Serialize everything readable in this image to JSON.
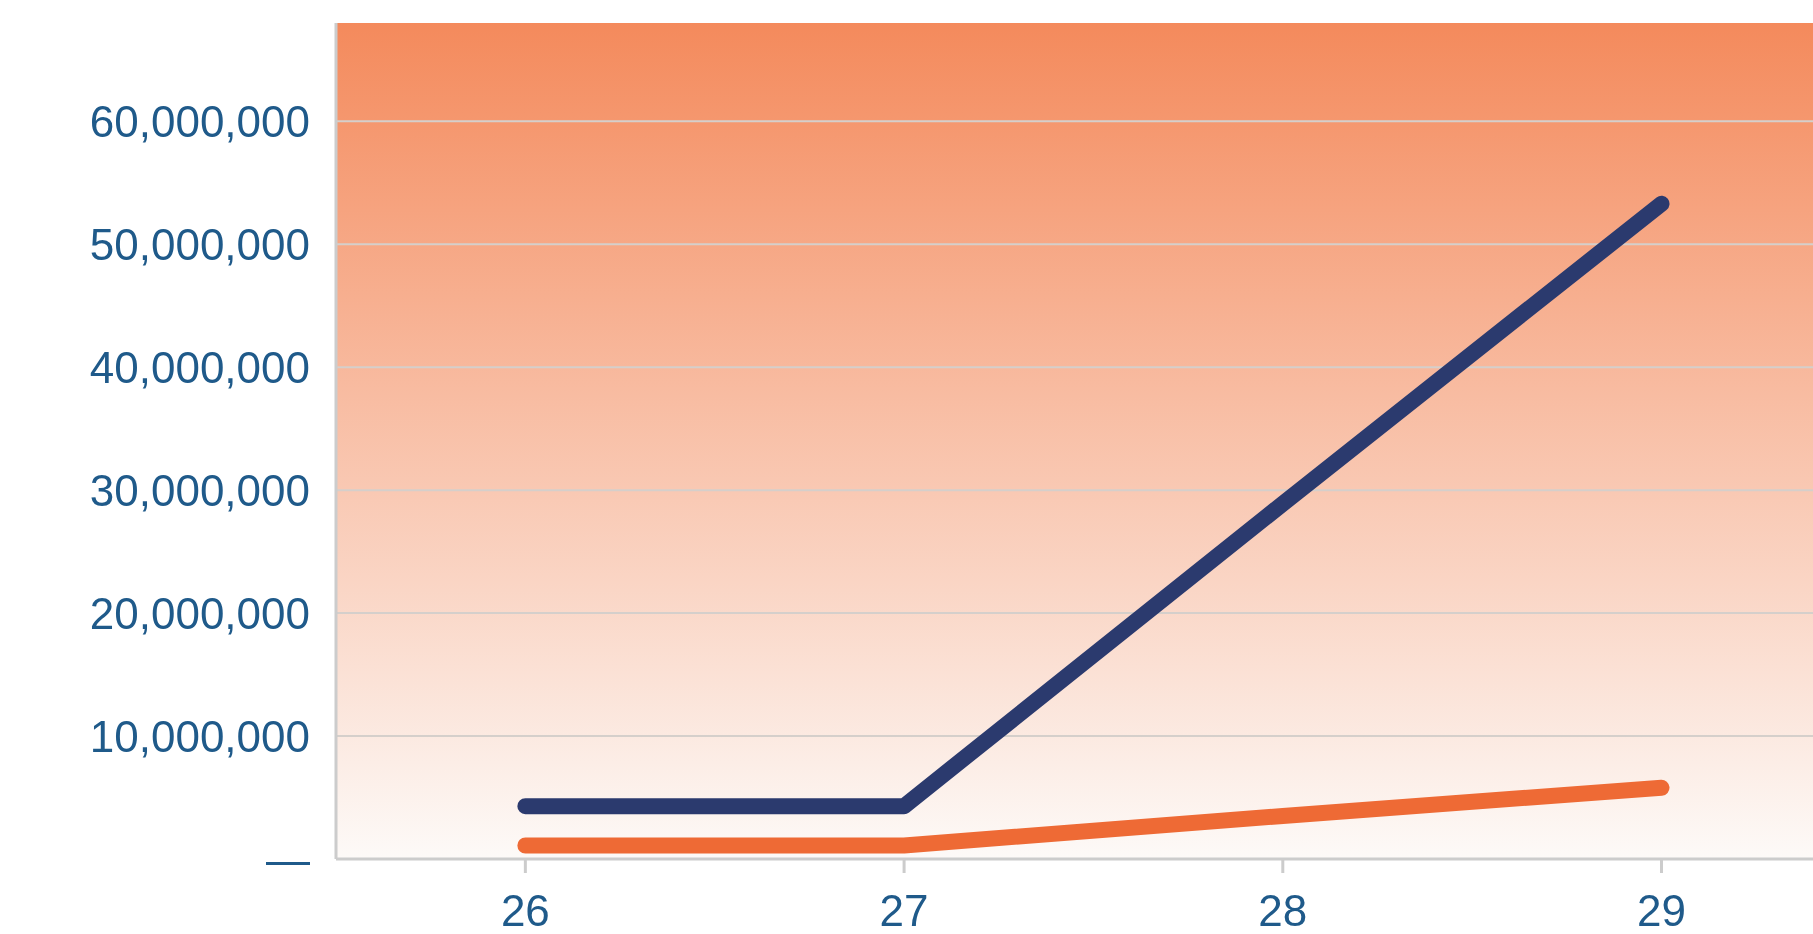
{
  "chart_data": {
    "type": "line",
    "x": [
      26,
      27,
      28,
      29
    ],
    "series": [
      {
        "color": "#2b3a6e",
        "values": [
          4300000,
          4300000,
          28900000,
          53300000
        ]
      },
      {
        "color": "#ee6a35",
        "values": [
          1100000,
          1100000,
          3500000,
          5800000
        ]
      }
    ],
    "xlim": [
      25.5,
      29.4
    ],
    "xticks": [
      26,
      27,
      28,
      29
    ],
    "ylim": [
      0,
      68000000
    ],
    "yticks": [
      {
        "value": 0,
        "label": "—"
      },
      {
        "value": 10000000,
        "label": "10,000,000"
      },
      {
        "value": 20000000,
        "label": "20,000,000"
      },
      {
        "value": 30000000,
        "label": "30,000,000"
      },
      {
        "value": 40000000,
        "label": "40,000,000"
      },
      {
        "value": 50000000,
        "label": "50,000,000"
      },
      {
        "value": 60000000,
        "label": "60,000,000"
      }
    ],
    "grid": "y",
    "marker": "none",
    "line_style": "solid"
  }
}
